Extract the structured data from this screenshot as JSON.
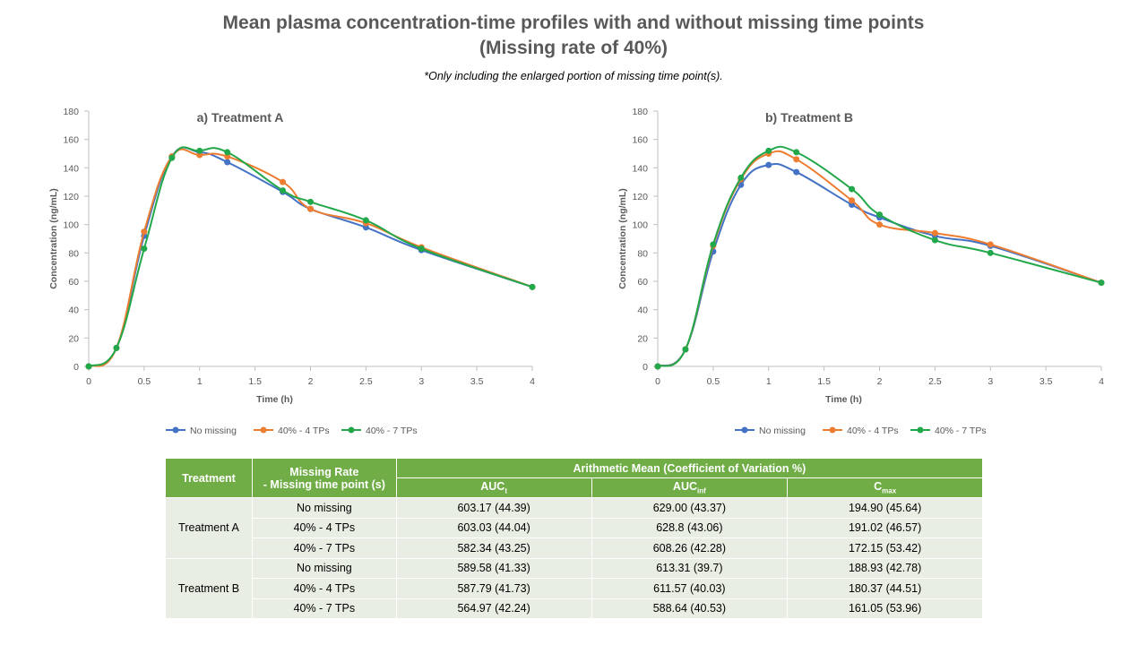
{
  "page": {
    "title_line1": "Mean plasma concentration-time profiles with and without missing time points",
    "title_line2": "(Missing rate of 40%)",
    "subtitle": "*Only including the enlarged portion of missing time point(s)."
  },
  "colors": {
    "series": [
      "#4472c4",
      "#ed7d31",
      "#22a84a"
    ],
    "table_header": "#70ad47",
    "table_cell": "#e8eee3"
  },
  "chart_data": [
    {
      "type": "line",
      "title": "a) Treatment A",
      "xlabel": "Time (h)",
      "ylabel": "Concentration (ng/mL)",
      "xlim": [
        0,
        4
      ],
      "ylim": [
        0,
        180
      ],
      "xticks": [
        "0",
        "0.5",
        "1",
        "1.5",
        "2",
        "2.5",
        "3",
        "3.5",
        "4"
      ],
      "yticks": [
        "0",
        "20",
        "40",
        "60",
        "80",
        "100",
        "120",
        "140",
        "160",
        "180"
      ],
      "legend_position": "bottom",
      "series": [
        {
          "name": "No missing",
          "x": [
            0,
            0.25,
            0.5,
            0.75,
            1,
            1.25,
            1.75,
            2,
            2.5,
            3,
            4
          ],
          "y": [
            0,
            13,
            92,
            148,
            151,
            144,
            123,
            111,
            98,
            82,
            56
          ]
        },
        {
          "name": "40% - 4 TPs",
          "x": [
            0,
            0.25,
            0.5,
            0.75,
            1,
            1.25,
            1.75,
            2,
            2.5,
            3,
            4
          ],
          "y": [
            0,
            13,
            95,
            148,
            149,
            148,
            130,
            111,
            101,
            84,
            56
          ]
        },
        {
          "name": "40% - 7 TPs",
          "x": [
            0,
            0.25,
            0.5,
            0.75,
            1,
            1.25,
            1.75,
            2,
            2.5,
            3,
            4
          ],
          "y": [
            0,
            13,
            83,
            147,
            152,
            151,
            124,
            116,
            103,
            83,
            56
          ]
        }
      ]
    },
    {
      "type": "line",
      "title": "b) Treatment B",
      "xlabel": "Time (h)",
      "ylabel": "Concentration (ng/mL)",
      "xlim": [
        0,
        4
      ],
      "ylim": [
        0,
        180
      ],
      "xticks": [
        "0",
        "0.5",
        "1",
        "1.5",
        "2",
        "2.5",
        "3",
        "3.5",
        "4"
      ],
      "yticks": [
        "0",
        "20",
        "40",
        "60",
        "80",
        "100",
        "120",
        "140",
        "160",
        "180"
      ],
      "legend_position": "bottom",
      "series": [
        {
          "name": "No missing",
          "x": [
            0,
            0.25,
            0.5,
            0.75,
            1,
            1.25,
            1.75,
            2,
            2.5,
            3,
            4
          ],
          "y": [
            0,
            12,
            81,
            128,
            142,
            137,
            114,
            105,
            92,
            85,
            59
          ]
        },
        {
          "name": "40% - 4 TPs",
          "x": [
            0,
            0.25,
            0.5,
            0.75,
            1,
            1.25,
            1.75,
            2,
            2.5,
            3,
            4
          ],
          "y": [
            0,
            12,
            85,
            132,
            150,
            146,
            117,
            100,
            94,
            86,
            59
          ]
        },
        {
          "name": "40% - 7 TPs",
          "x": [
            0,
            0.25,
            0.5,
            0.75,
            1,
            1.25,
            1.75,
            2,
            2.5,
            3,
            4
          ],
          "y": [
            0,
            12,
            86,
            133,
            152,
            151,
            125,
            107,
            89,
            80,
            59
          ]
        }
      ]
    }
  ],
  "table": {
    "col_treatment": "Treatment",
    "col_missing_line1": "Missing Rate",
    "col_missing_line2": "- Missing time point (s)",
    "col_group": "Arithmetic Mean (Coefficient of Variation %)",
    "col_auct_main": "AUC",
    "col_auct_sub": "t",
    "col_aucinf_main": "AUC",
    "col_aucinf_sub": "inf",
    "col_cmax_main": "C",
    "col_cmax_sub": "max",
    "groups": [
      {
        "treatment": "Treatment A",
        "rows": [
          {
            "missing": "No missing",
            "auct": "603.17 (44.39)",
            "aucinf": "629.00 (43.37)",
            "cmax": "194.90 (45.64)"
          },
          {
            "missing": "40% - 4 TPs",
            "auct": "603.03 (44.04)",
            "aucinf": "628.8 (43.06)",
            "cmax": "191.02 (46.57)"
          },
          {
            "missing": "40% - 7 TPs",
            "auct": "582.34 (43.25)",
            "aucinf": "608.26 (42.28)",
            "cmax": "172.15 (53.42)"
          }
        ]
      },
      {
        "treatment": "Treatment B",
        "rows": [
          {
            "missing": "No missing",
            "auct": "589.58 (41.33)",
            "aucinf": "613.31 (39.7)",
            "cmax": "188.93 (42.78)"
          },
          {
            "missing": "40% - 4 TPs",
            "auct": "587.79 (41.73)",
            "aucinf": "611.57 (40.03)",
            "cmax": "180.37 (44.51)"
          },
          {
            "missing": "40% - 7 TPs",
            "auct": "564.97 (42.24)",
            "aucinf": "588.64 (40.53)",
            "cmax": "161.05 (53.96)"
          }
        ]
      }
    ]
  }
}
